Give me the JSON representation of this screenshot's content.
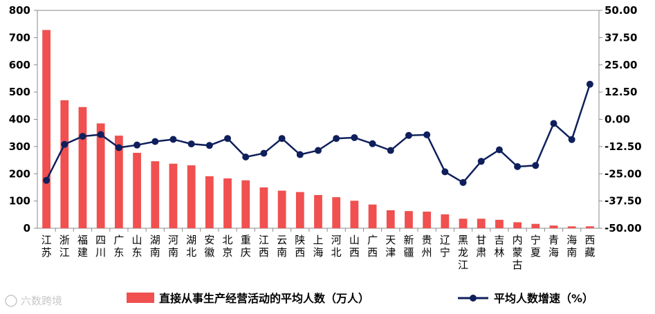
{
  "chart_data": {
    "type": "bar+line",
    "categories": [
      "江苏",
      "浙江",
      "福建",
      "四川",
      "广东",
      "山东",
      "湖南",
      "河南",
      "湖北",
      "安徽",
      "北京",
      "重庆",
      "江西",
      "云南",
      "陕西",
      "上海",
      "河北",
      "山西",
      "广西",
      "天津",
      "新疆",
      "贵州",
      "辽宁",
      "黑龙江",
      "甘肃",
      "吉林",
      "内蒙古",
      "宁夏",
      "青海",
      "海南",
      "西藏"
    ],
    "series": [
      {
        "name": "直接从事生产经营活动的平均人数（万人）",
        "type": "bar",
        "axis": "left",
        "color": "#f0504f",
        "values": [
          728,
          470,
          445,
          385,
          340,
          277,
          246,
          237,
          231,
          191,
          183,
          176,
          150,
          138,
          133,
          122,
          114,
          101,
          87,
          66,
          63,
          61,
          51,
          35,
          35,
          31,
          22,
          16,
          10,
          7,
          7
        ]
      },
      {
        "name": "平均人数增速（%）",
        "type": "line",
        "axis": "right",
        "color": "#0f1f5c",
        "values": [
          -28.0,
          -11.5,
          -7.8,
          -7.0,
          -13.0,
          -11.8,
          -10.2,
          -9.2,
          -11.3,
          -12.0,
          -8.8,
          -17.3,
          -15.6,
          -8.8,
          -16.2,
          -14.3,
          -8.8,
          -8.4,
          -11.2,
          -14.3,
          -7.4,
          -7.1,
          -24.1,
          -29.0,
          -19.3,
          -14.0,
          -21.7,
          -21.2,
          -1.9,
          -9.3,
          16.1
        ]
      }
    ],
    "y_left": {
      "ylim": [
        0,
        800
      ],
      "ticks": [
        "0",
        "100",
        "200",
        "300",
        "400",
        "500",
        "600",
        "700",
        "800"
      ]
    },
    "y_right": {
      "ylim": [
        -50,
        50
      ],
      "ticks": [
        "-50.00",
        "-37.50",
        "-25.00",
        "-12.50",
        "0.00",
        "12.50",
        "25.00",
        "37.50",
        "50.00"
      ]
    },
    "legend": {
      "position": "bottom"
    },
    "grid": false
  },
  "watermark": "六数跨境"
}
